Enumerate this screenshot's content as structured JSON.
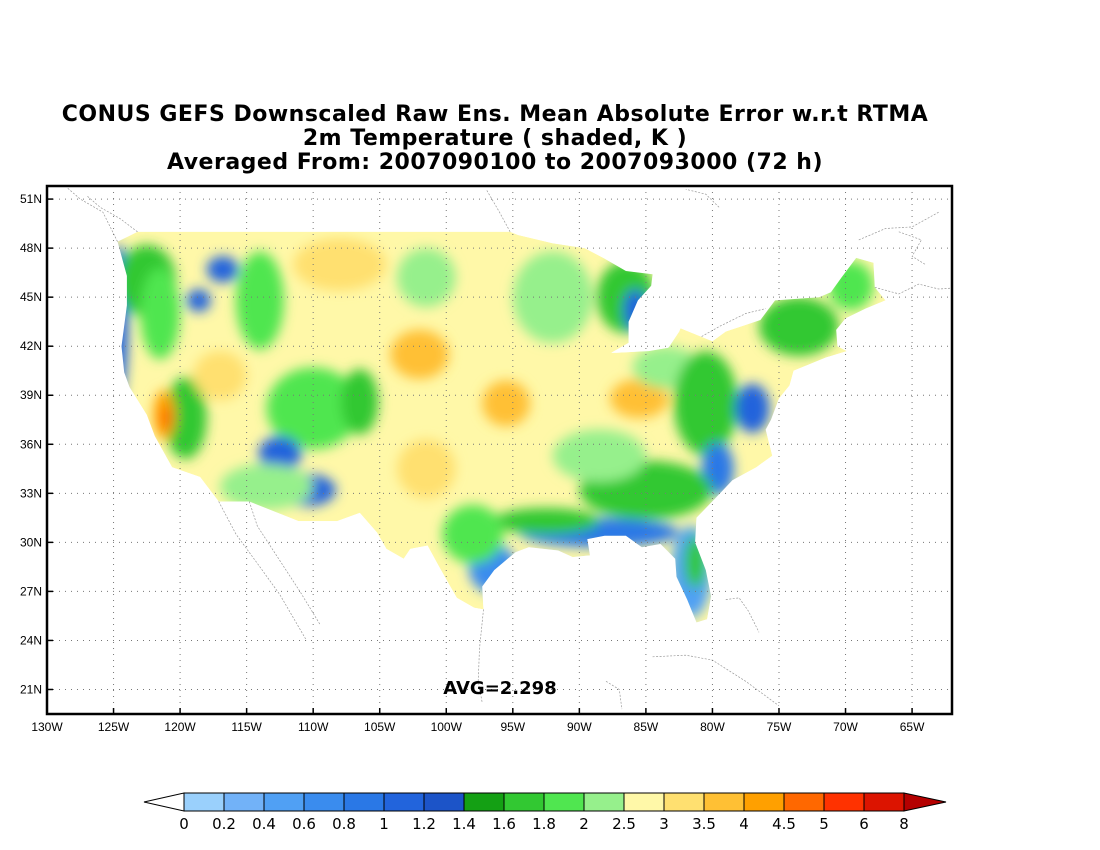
{
  "title": {
    "line1": "CONUS GEFS Downscaled Raw Ens. Mean Absolute Error w.r.t RTMA",
    "line2": "2m Temperature ( shaded, K )",
    "line3": "Averaged From: 2007090100 to 2007093000 (72 h)"
  },
  "map": {
    "lon_range": [
      -130,
      -62
    ],
    "lat_range": [
      19.5,
      51.8
    ],
    "lat_ticks": [
      {
        "value": 51,
        "label": "51N"
      },
      {
        "value": 48,
        "label": "48N"
      },
      {
        "value": 45,
        "label": "45N"
      },
      {
        "value": 42,
        "label": "42N"
      },
      {
        "value": 39,
        "label": "39N"
      },
      {
        "value": 36,
        "label": "36N"
      },
      {
        "value": 33,
        "label": "33N"
      },
      {
        "value": 30,
        "label": "30N"
      },
      {
        "value": 27,
        "label": "27N"
      },
      {
        "value": 24,
        "label": "24N"
      },
      {
        "value": 21,
        "label": "21N"
      }
    ],
    "lon_ticks": [
      {
        "value": -130,
        "label": "130W"
      },
      {
        "value": -125,
        "label": "125W"
      },
      {
        "value": -120,
        "label": "120W"
      },
      {
        "value": -115,
        "label": "115W"
      },
      {
        "value": -110,
        "label": "110W"
      },
      {
        "value": -105,
        "label": "105W"
      },
      {
        "value": -100,
        "label": "100W"
      },
      {
        "value": -95,
        "label": "95W"
      },
      {
        "value": -90,
        "label": "90W"
      },
      {
        "value": -85,
        "label": "85W"
      },
      {
        "value": -80,
        "label": "80W"
      },
      {
        "value": -75,
        "label": "75W"
      },
      {
        "value": -70,
        "label": "70W"
      },
      {
        "value": -65,
        "label": "65W"
      }
    ],
    "grid": true,
    "avg_text": "AVG=2.298",
    "background_color": "#fff8a8"
  },
  "colorbar": {
    "labels": [
      "0",
      "0.2",
      "0.4",
      "0.6",
      "0.8",
      "1",
      "1.2",
      "1.4",
      "1.6",
      "1.8",
      "2",
      "2.5",
      "3",
      "3.5",
      "4",
      "4.5",
      "5",
      "6",
      "8"
    ],
    "colors": [
      "#9ad0fc",
      "#72b2f8",
      "#50a0f4",
      "#3a8cee",
      "#2a78e6",
      "#2264dc",
      "#1c54c8",
      "#14a014",
      "#32c832",
      "#50e650",
      "#96f08c",
      "#fff8a8",
      "#ffe070",
      "#ffc034",
      "#ffa000",
      "#ff6800",
      "#ff3200",
      "#dc1400"
    ],
    "under_color": "#ffffff",
    "over_color": "#b40000"
  },
  "regions": [
    {
      "name": "west-coast-blue",
      "lon": -124.6,
      "lat": 43.5,
      "rx": 0.7,
      "ry": 4.8,
      "color": "#2264dc"
    },
    {
      "name": "pacific-nw-green",
      "lon": -122.5,
      "lat": 46.0,
      "rx": 2.2,
      "ry": 2.2,
      "color": "#32c832"
    },
    {
      "name": "cascades-green",
      "lon": -121.5,
      "lat": 44.0,
      "rx": 1.5,
      "ry": 2.8,
      "color": "#50e650"
    },
    {
      "name": "idaho-blue-1",
      "lon": -116.8,
      "lat": 46.7,
      "rx": 1.2,
      "ry": 0.8,
      "color": "#2264dc"
    },
    {
      "name": "idaho-blue-2",
      "lon": -118.6,
      "lat": 44.8,
      "rx": 0.9,
      "ry": 0.7,
      "color": "#2264dc"
    },
    {
      "name": "rockies-green-n",
      "lon": -114.0,
      "lat": 44.8,
      "rx": 1.8,
      "ry": 3.0,
      "color": "#50e650"
    },
    {
      "name": "sierra-green",
      "lon": -119.6,
      "lat": 37.6,
      "rx": 1.6,
      "ry": 2.5,
      "color": "#32c832"
    },
    {
      "name": "central-valley-orange",
      "lon": -121.2,
      "lat": 37.8,
      "rx": 0.8,
      "ry": 1.5,
      "color": "#ffa000"
    },
    {
      "name": "central-valley-red",
      "lon": -121.0,
      "lat": 37.6,
      "rx": 0.4,
      "ry": 0.7,
      "color": "#ff6800"
    },
    {
      "name": "nevada-yellow",
      "lon": -117.0,
      "lat": 40.2,
      "rx": 2.0,
      "ry": 1.5,
      "color": "#ffe070"
    },
    {
      "name": "rockies-green-c",
      "lon": -110.0,
      "lat": 38.2,
      "rx": 3.5,
      "ry": 2.5,
      "color": "#50e650"
    },
    {
      "name": "four-corners-blue",
      "lon": -112.5,
      "lat": 35.4,
      "rx": 1.6,
      "ry": 1.1,
      "color": "#2264dc"
    },
    {
      "name": "arizona-blue",
      "lon": -110.5,
      "lat": 33.2,
      "rx": 2.2,
      "ry": 1.0,
      "color": "#2264dc"
    },
    {
      "name": "colorado-green",
      "lon": -106.5,
      "lat": 38.6,
      "rx": 1.4,
      "ry": 2.0,
      "color": "#32c832"
    },
    {
      "name": "southwest-lightgreen",
      "lon": -113.5,
      "lat": 33.4,
      "rx": 3.5,
      "ry": 1.4,
      "color": "#96f08c"
    },
    {
      "name": "plains-orange-1",
      "lon": -102.0,
      "lat": 41.5,
      "rx": 2.2,
      "ry": 1.5,
      "color": "#ffc034"
    },
    {
      "name": "plains-orange-2",
      "lon": -95.5,
      "lat": 38.5,
      "rx": 1.8,
      "ry": 1.4,
      "color": "#ffc034"
    },
    {
      "name": "plains-orange-3",
      "lon": -85.5,
      "lat": 38.8,
      "rx": 2.2,
      "ry": 1.2,
      "color": "#ffc034"
    },
    {
      "name": "montana-yellow",
      "lon": -108.0,
      "lat": 47.0,
      "rx": 3.5,
      "ry": 1.6,
      "color": "#ffe070"
    },
    {
      "name": "dakotas-lightgreen",
      "lon": -101.5,
      "lat": 46.2,
      "rx": 2.2,
      "ry": 1.8,
      "color": "#96f08c"
    },
    {
      "name": "upper-midwest-green",
      "lon": -92.0,
      "lat": 45.0,
      "rx": 3.0,
      "ry": 2.8,
      "color": "#96f08c"
    },
    {
      "name": "great-lakes-green",
      "lon": -86.5,
      "lat": 45.0,
      "rx": 2.2,
      "ry": 2.2,
      "color": "#32c832"
    },
    {
      "name": "lake-blue",
      "lon": -85.8,
      "lat": 44.2,
      "rx": 0.9,
      "ry": 1.3,
      "color": "#2264dc"
    },
    {
      "name": "ohio-green",
      "lon": -83.5,
      "lat": 40.7,
      "rx": 2.5,
      "ry": 1.3,
      "color": "#96f08c"
    },
    {
      "name": "appalachian-green",
      "lon": -80.5,
      "lat": 38.5,
      "rx": 2.4,
      "ry": 3.2,
      "color": "#32c832"
    },
    {
      "name": "northeast-green",
      "lon": -73.5,
      "lat": 43.2,
      "rx": 3.0,
      "ry": 1.8,
      "color": "#32c832"
    },
    {
      "name": "maine-green",
      "lon": -69.6,
      "lat": 45.7,
      "rx": 1.7,
      "ry": 1.5,
      "color": "#50e650"
    },
    {
      "name": "east-coast-blue-1",
      "lon": -77.0,
      "lat": 38.2,
      "rx": 1.3,
      "ry": 1.5,
      "color": "#2264dc"
    },
    {
      "name": "east-coast-blue-2",
      "lon": -79.6,
      "lat": 34.5,
      "rx": 1.2,
      "ry": 1.6,
      "color": "#2a78e6"
    },
    {
      "name": "southeast-green",
      "lon": -85.0,
      "lat": 33.2,
      "rx": 5.0,
      "ry": 1.8,
      "color": "#32c832"
    },
    {
      "name": "southeast-lightgreen",
      "lon": -88.5,
      "lat": 35.3,
      "rx": 3.5,
      "ry": 1.6,
      "color": "#96f08c"
    },
    {
      "name": "gulf-blue",
      "lon": -88.5,
      "lat": 30.6,
      "rx": 6.0,
      "ry": 0.9,
      "color": "#2a78e6"
    },
    {
      "name": "gulf-coast-green",
      "lon": -92.5,
      "lat": 31.3,
      "rx": 4.0,
      "ry": 0.8,
      "color": "#32c832"
    },
    {
      "name": "texas-coast-blue",
      "lon": -96.5,
      "lat": 28.4,
      "rx": 1.8,
      "ry": 1.5,
      "color": "#3a8cee"
    },
    {
      "name": "texas-green",
      "lon": -98.0,
      "lat": 30.5,
      "rx": 2.3,
      "ry": 1.8,
      "color": "#50e650"
    },
    {
      "name": "florida-blue",
      "lon": -81.6,
      "lat": 28.2,
      "rx": 1.5,
      "ry": 2.8,
      "color": "#50a0f4"
    },
    {
      "name": "florida-green",
      "lon": -81.3,
      "lat": 28.8,
      "rx": 0.8,
      "ry": 1.6,
      "color": "#32c832"
    },
    {
      "name": "texas-panhandle-yellow",
      "lon": -101.5,
      "lat": 34.5,
      "rx": 2.2,
      "ry": 1.8,
      "color": "#ffe070"
    }
  ]
}
